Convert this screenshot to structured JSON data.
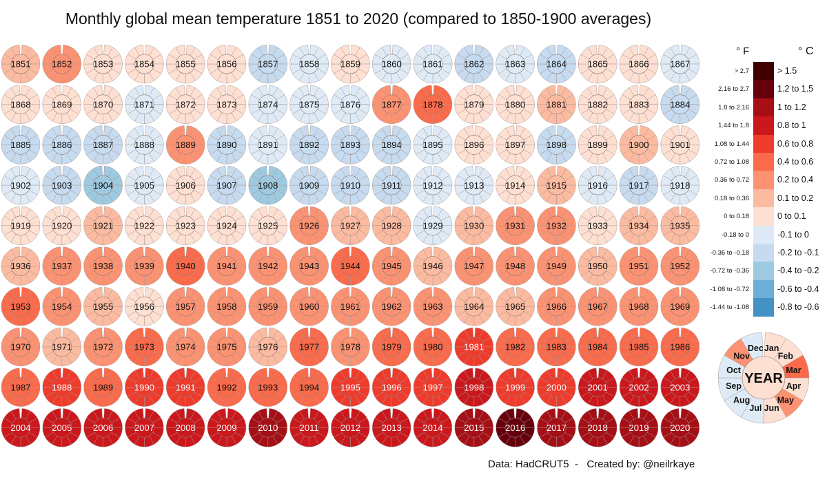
{
  "chart_data": {
    "type": "polar-heatmap",
    "title": "Monthly global mean temperature 1851 to 2020 (compared to 1850-1900 averages)",
    "unit_headers": {
      "f": "° F",
      "c": "° C"
    },
    "legend": [
      {
        "c": "> 1.5",
        "f": "> 2.7",
        "color": "#3f0000",
        "min": 1.5
      },
      {
        "c": "1.2 to 1.5",
        "f": "2.16 to 2.7",
        "color": "#67000d",
        "min": 1.2
      },
      {
        "c": "1 to 1.2",
        "f": "1.8 to 2.16",
        "color": "#a50f15",
        "min": 1.0
      },
      {
        "c": "0.8 to 1",
        "f": "1.44 to 1.8",
        "color": "#cb181d",
        "min": 0.8
      },
      {
        "c": "0.6 to 0.8",
        "f": "1.08 to 1.44",
        "color": "#ef3b2c",
        "min": 0.6
      },
      {
        "c": "0.4 to 0.6",
        "f": "0.72 to 1.08",
        "color": "#fb6a4a",
        "min": 0.4
      },
      {
        "c": "0.2 to 0.4",
        "f": "0.36 to 0.72",
        "color": "#fc9272",
        "min": 0.2
      },
      {
        "c": "0.1 to 0.2",
        "f": "0.18 to 0.36",
        "color": "#fcbba1",
        "min": 0.1
      },
      {
        "c": "0 to 0.1",
        "f": "0 to 0.18",
        "color": "#fee0d2",
        "min": 0.0
      },
      {
        "c": "-0.1 to 0",
        "f": "-0.18 to 0",
        "color": "#deebf7",
        "min": -0.1
      },
      {
        "c": "-0.2 to -0.1",
        "f": "-0.36 to -0.18",
        "color": "#c6dbef",
        "min": -0.2
      },
      {
        "c": "-0.4 to -0.2",
        "f": "-0.72 to -0.36",
        "color": "#9ecae1",
        "min": -0.4
      },
      {
        "c": "-0.6 to -0.4",
        "f": "-1.08 to -0.72",
        "color": "#6baed6",
        "min": -0.6
      },
      {
        "c": "-0.8 to -0.6",
        "f": "-1.44 to -1.08",
        "color": "#4292c6",
        "min": -0.8
      }
    ],
    "start_year": 1851,
    "annual_anomaly_c": [
      0.15,
      0.25,
      0.05,
      0.05,
      0.05,
      0.05,
      -0.15,
      -0.05,
      0.05,
      -0.05,
      -0.05,
      -0.15,
      -0.05,
      -0.15,
      0.05,
      0.05,
      -0.05,
      0.05,
      0.05,
      0.05,
      -0.05,
      0.05,
      0.05,
      -0.05,
      -0.05,
      -0.05,
      0.3,
      0.45,
      0.05,
      0.05,
      0.15,
      0.05,
      0.05,
      -0.15,
      -0.15,
      -0.15,
      -0.15,
      -0.05,
      0.25,
      -0.15,
      -0.05,
      -0.15,
      -0.15,
      -0.15,
      -0.05,
      0.05,
      0.05,
      -0.15,
      0.05,
      0.15,
      0.05,
      -0.05,
      -0.15,
      -0.25,
      -0.05,
      0.05,
      -0.15,
      -0.25,
      -0.15,
      -0.15,
      -0.15,
      -0.05,
      -0.05,
      0.05,
      0.15,
      -0.05,
      -0.15,
      -0.05,
      0.05,
      0.05,
      0.15,
      0.05,
      0.05,
      0.05,
      0.05,
      0.25,
      0.15,
      0.15,
      -0.05,
      0.15,
      0.25,
      0.25,
      0.05,
      0.15,
      0.15,
      0.15,
      0.25,
      0.3,
      0.3,
      0.45,
      0.3,
      0.3,
      0.3,
      0.45,
      0.3,
      0.15,
      0.25,
      0.25,
      0.25,
      0.15,
      0.25,
      0.3,
      0.45,
      0.25,
      0.15,
      0.05,
      0.3,
      0.3,
      0.3,
      0.25,
      0.3,
      0.3,
      0.3,
      0.15,
      0.15,
      0.25,
      0.25,
      0.25,
      0.35,
      0.3,
      0.15,
      0.3,
      0.45,
      0.25,
      0.25,
      0.15,
      0.45,
      0.35,
      0.45,
      0.5,
      0.65,
      0.45,
      0.55,
      0.45,
      0.45,
      0.5,
      0.55,
      0.65,
      0.55,
      0.7,
      0.65,
      0.5,
      0.5,
      0.55,
      0.7,
      0.65,
      0.75,
      0.9,
      0.7,
      0.7,
      0.85,
      0.9,
      0.9,
      0.85,
      0.95,
      0.9,
      0.9,
      0.8,
      0.9,
      1.05,
      0.85,
      0.9,
      0.95,
      0.95,
      1.1,
      1.25,
      1.1,
      1.0,
      1.1,
      1.1
    ],
    "months": [
      "Jan",
      "Feb",
      "Mar",
      "Apr",
      "May",
      "Jun",
      "Jul",
      "Aug",
      "Sep",
      "Oct",
      "Nov",
      "Dec"
    ],
    "key": {
      "center_label": "YEAR",
      "center_value": 0.05,
      "month_values": [
        0.05,
        0.05,
        0.5,
        0.05,
        0.3,
        0.05,
        -0.05,
        -0.05,
        -0.05,
        -0.05,
        0.3,
        -0.05
      ]
    }
  },
  "footer": "Data: HadCRUT5  -   Created by: @neilrkaye"
}
